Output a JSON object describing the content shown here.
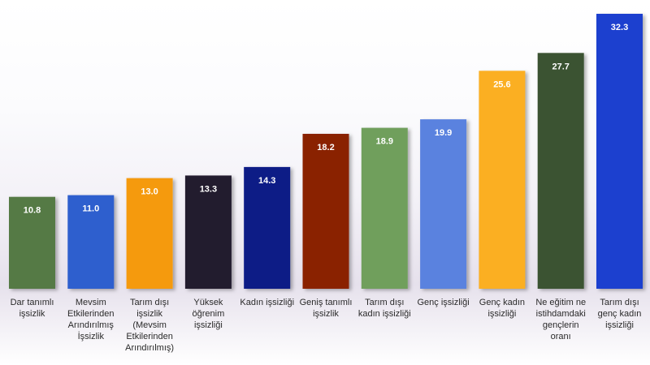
{
  "chart_data": {
    "type": "bar",
    "title": "",
    "xlabel": "",
    "ylabel": "",
    "ylim": [
      0,
      32.3
    ],
    "grid": false,
    "legend": "none",
    "bars": [
      {
        "label": [
          "Dar tanımlı",
          "işsizlik"
        ],
        "value": 10.8,
        "color": "#557a44"
      },
      {
        "label": [
          "Mevsim",
          "Etkilerinden",
          "Arındırılmış",
          "İşsizlik"
        ],
        "value": 11.0,
        "color": "#2f5fce"
      },
      {
        "label": [
          "Tarım dışı",
          "işsizlik",
          "(Mevsim",
          "Etkilerinden",
          "Arındırılmış)"
        ],
        "value": 13.0,
        "color": "#f59a0a"
      },
      {
        "label": [
          "Yüksek",
          "öğrenim",
          "işsizliği"
        ],
        "value": 13.3,
        "color": "#231a2e"
      },
      {
        "label": [
          "Kadın işsizliği"
        ],
        "value": 14.3,
        "color": "#0b1a86"
      },
      {
        "label": [
          "Geniş tanımlı",
          "işsizlik"
        ],
        "value": 18.2,
        "color": "#8a2406"
      },
      {
        "label": [
          "Tarım dışı",
          "kadın işsizliği"
        ],
        "value": 18.9,
        "color": "#6f9f5c"
      },
      {
        "label": [
          "Genç işsizliği"
        ],
        "value": 19.9,
        "color": "#5a82df"
      },
      {
        "label": [
          "Genç kadın",
          "işsizliği"
        ],
        "value": 25.6,
        "color": "#fbaf22"
      },
      {
        "label": [
          "Ne eğitim ne",
          "istihdamdaki",
          "gençlerin",
          "oranı"
        ],
        "value": 27.7,
        "color": "#3a5232"
      },
      {
        "label": [
          "Tarım dışı",
          "genç kadın",
          "işsizliği"
        ],
        "value": 32.3,
        "color": "#1c3fcf"
      }
    ]
  }
}
